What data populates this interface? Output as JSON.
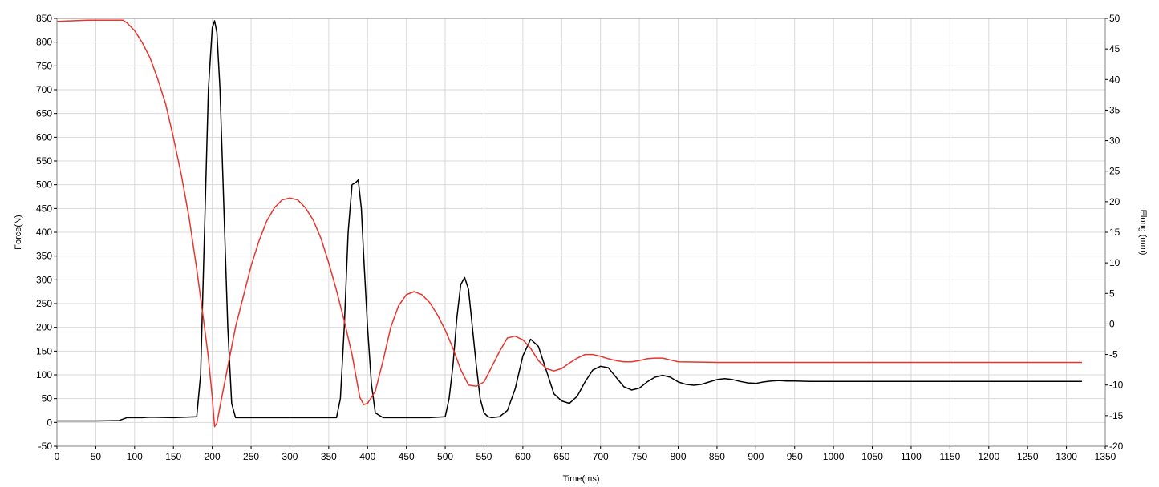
{
  "chart_data": {
    "type": "line",
    "title": "",
    "xlabel": "Time(ms)",
    "ylabel_left": "Force(N)",
    "ylabel_right": "Elong (mm)",
    "xlim": [
      0,
      1350
    ],
    "x_ticks": [
      0,
      50,
      100,
      150,
      200,
      250,
      300,
      350,
      400,
      450,
      500,
      550,
      600,
      650,
      700,
      750,
      800,
      850,
      900,
      950,
      1000,
      1050,
      1100,
      1150,
      1200,
      1250,
      1300,
      1350
    ],
    "ylim_left": [
      -50,
      850
    ],
    "y_ticks_left": [
      -50,
      0,
      50,
      100,
      150,
      200,
      250,
      300,
      350,
      400,
      450,
      500,
      550,
      600,
      650,
      700,
      750,
      800,
      850
    ],
    "ylim_right": [
      -20,
      50
    ],
    "y_ticks_right": [
      -20,
      -15,
      -10,
      -5,
      0,
      5,
      10,
      15,
      20,
      25,
      30,
      35,
      40,
      45,
      50
    ],
    "grid": true,
    "legend": "none",
    "series": [
      {
        "axis": "left",
        "color": "#000000",
        "x": [
          0,
          50,
          80,
          90,
          110,
          120,
          150,
          180,
          185,
          190,
          195,
          200,
          203,
          206,
          210,
          215,
          220,
          225,
          230,
          300,
          360,
          365,
          370,
          375,
          380,
          385,
          388,
          392,
          395,
          400,
          405,
          410,
          420,
          440,
          480,
          500,
          505,
          510,
          515,
          520,
          525,
          530,
          535,
          540,
          545,
          550,
          555,
          560,
          570,
          580,
          590,
          600,
          610,
          620,
          630,
          640,
          650,
          660,
          670,
          680,
          690,
          700,
          710,
          720,
          730,
          740,
          750,
          760,
          770,
          780,
          790,
          800,
          810,
          820,
          830,
          840,
          850,
          860,
          870,
          880,
          890,
          900,
          910,
          920,
          930,
          940,
          950,
          970,
          1000,
          1050,
          1100,
          1150,
          1200,
          1250,
          1300,
          1320
        ],
        "values": [
          3,
          3,
          4,
          10,
          10,
          11,
          10,
          12,
          100,
          400,
          700,
          830,
          845,
          820,
          700,
          450,
          200,
          40,
          10,
          10,
          10,
          50,
          200,
          400,
          500,
          505,
          510,
          450,
          350,
          200,
          80,
          20,
          10,
          10,
          10,
          12,
          50,
          120,
          220,
          290,
          305,
          280,
          200,
          120,
          50,
          20,
          12,
          10,
          12,
          25,
          70,
          140,
          175,
          160,
          110,
          60,
          45,
          40,
          55,
          85,
          110,
          118,
          115,
          95,
          75,
          68,
          72,
          85,
          95,
          99,
          95,
          85,
          80,
          78,
          80,
          85,
          90,
          92,
          90,
          86,
          83,
          82,
          85,
          87,
          88,
          87,
          87,
          86,
          86,
          86,
          86,
          86,
          86,
          86,
          86,
          86
        ]
      },
      {
        "axis": "right",
        "color": "#e8352e",
        "x": [
          0,
          40,
          70,
          85,
          90,
          100,
          110,
          120,
          130,
          140,
          150,
          160,
          170,
          180,
          190,
          195,
          200,
          203,
          206,
          210,
          220,
          230,
          240,
          250,
          260,
          270,
          280,
          290,
          300,
          310,
          320,
          330,
          340,
          350,
          360,
          370,
          380,
          385,
          390,
          395,
          400,
          410,
          420,
          430,
          440,
          450,
          460,
          470,
          480,
          490,
          500,
          510,
          520,
          530,
          540,
          550,
          560,
          570,
          580,
          590,
          600,
          610,
          620,
          630,
          640,
          650,
          660,
          670,
          680,
          690,
          700,
          710,
          720,
          730,
          740,
          750,
          760,
          770,
          780,
          790,
          800,
          850,
          900,
          1000,
          1100,
          1200,
          1300,
          1320
        ],
        "values": [
          49.5,
          49.7,
          49.7,
          49.7,
          49.3,
          48.0,
          46.0,
          43.5,
          40.0,
          36.0,
          30.5,
          24.5,
          17.5,
          9.0,
          -0.5,
          -5.5,
          -12.0,
          -16.8,
          -16.2,
          -13.5,
          -7.0,
          -0.5,
          4.5,
          9.5,
          13.5,
          16.8,
          19.0,
          20.3,
          20.6,
          20.3,
          19.0,
          17.0,
          14.0,
          10.0,
          5.5,
          0.5,
          -5.0,
          -8.5,
          -12.0,
          -13.2,
          -13.0,
          -11.0,
          -6.0,
          -0.5,
          3.0,
          4.8,
          5.3,
          4.8,
          3.5,
          1.5,
          -1.0,
          -4.0,
          -7.5,
          -10.0,
          -10.2,
          -9.5,
          -7.0,
          -4.5,
          -2.3,
          -2.0,
          -2.6,
          -4.0,
          -6.0,
          -7.3,
          -7.7,
          -7.3,
          -6.4,
          -5.6,
          -5.0,
          -5.0,
          -5.3,
          -5.7,
          -6.0,
          -6.2,
          -6.2,
          -6.0,
          -5.7,
          -5.6,
          -5.6,
          -5.9,
          -6.2,
          -6.3,
          -6.3,
          -6.3,
          -6.3,
          -6.3,
          -6.3,
          -6.3
        ]
      }
    ]
  }
}
